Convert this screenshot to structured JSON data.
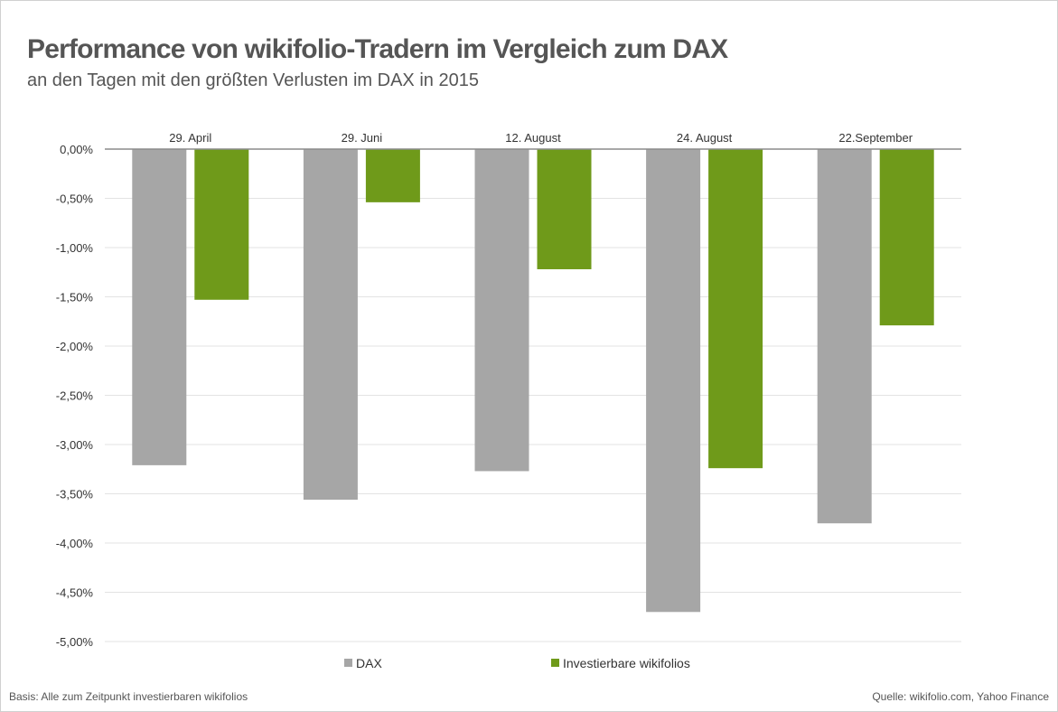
{
  "title": "Performance von wikifolio-Tradern im Vergleich zum DAX",
  "subtitle": "an den Tagen mit den größten Verlusten im DAX in 2015",
  "footer": {
    "left": "Basis: Alle zum Zeitpunkt investierbaren wikifolios",
    "right": "Quelle: wikifolio.com, Yahoo Finance"
  },
  "chart_data": {
    "type": "bar",
    "categories": [
      "29. April",
      "29. Juni",
      "12. August",
      "24. August",
      "22.September"
    ],
    "series": [
      {
        "name": "DAX",
        "color": "#a6a6a6",
        "values": [
          -3.21,
          -3.56,
          -3.27,
          -4.7,
          -3.8
        ]
      },
      {
        "name": "Investierbare wikifolios",
        "color": "#6f9a1a",
        "values": [
          -1.53,
          -0.54,
          -1.22,
          -3.24,
          -1.79
        ]
      }
    ],
    "ylim": [
      -5,
      0
    ],
    "yticks": [
      "0,00%",
      "-0,50%",
      "-1,00%",
      "-1,50%",
      "-2,00%",
      "-2,50%",
      "-3,00%",
      "-3,50%",
      "-4,00%",
      "-4,50%",
      "-5,00%"
    ],
    "grid": true,
    "legend_position": "bottom"
  }
}
